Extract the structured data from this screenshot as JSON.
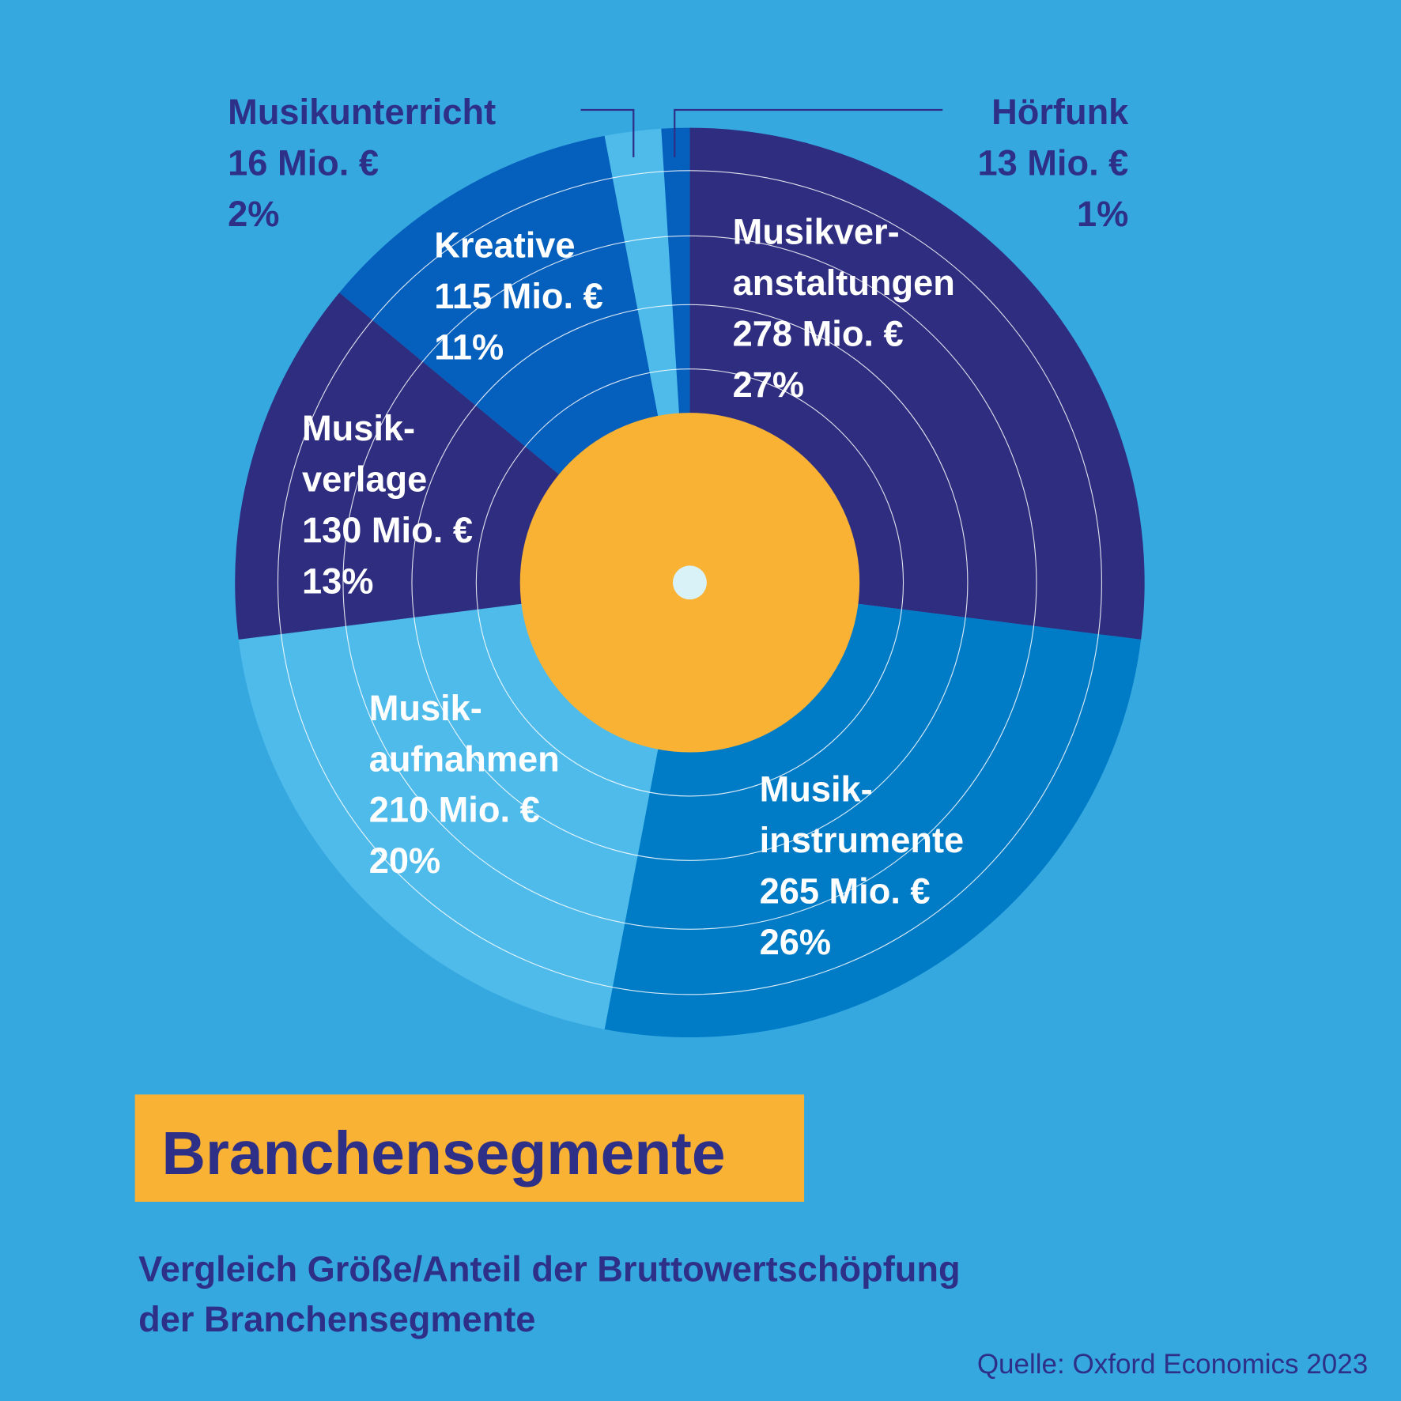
{
  "chart_data": {
    "type": "pie",
    "title": "Branchensegmente",
    "subtitle_lines": [
      "Vergleich Größe/Anteil der Bruttowertschöpfung",
      "der Branchensegmente"
    ],
    "source": "Quelle: Oxford Economics 2023",
    "start_angle": "top, clockwise",
    "slices": [
      {
        "name_lines": [
          "Musikver-",
          "anstaltungen"
        ],
        "value": 278,
        "value_label": "278 Mio. €",
        "percent": 27,
        "percent_label": "27%",
        "color": "#2e2d80"
      },
      {
        "name_lines": [
          "Musik-",
          "instrumente"
        ],
        "value": 265,
        "value_label": "265 Mio. €",
        "percent": 26,
        "percent_label": "26%",
        "color": "#007cc7"
      },
      {
        "name_lines": [
          "Musik-",
          "aufnahmen"
        ],
        "value": 210,
        "value_label": "210 Mio. €",
        "percent": 20,
        "percent_label": "20%",
        "color": "#4fbbeb"
      },
      {
        "name_lines": [
          "Musik-",
          "verlage"
        ],
        "value": 130,
        "value_label": "130 Mio. €",
        "percent": 13,
        "percent_label": "13%",
        "color": "#2e2d80"
      },
      {
        "name_lines": [
          "Kreative"
        ],
        "value": 115,
        "value_label": "115 Mio. €",
        "percent": 11,
        "percent_label": "11%",
        "color": "#055fbc"
      },
      {
        "name_lines": [
          "Musikunterricht"
        ],
        "value": 16,
        "value_label": "16 Mio. €",
        "percent": 2,
        "percent_label": "2%",
        "color": "#4fbbeb"
      },
      {
        "name_lines": [
          "Hörfunk"
        ],
        "value": 13,
        "value_label": "13 Mio. €",
        "percent": 1,
        "percent_label": "1%",
        "color": "#055fbc"
      }
    ],
    "colors": {
      "background": "#36a8e0",
      "center_label": "#f9b233",
      "spindle": "#d9f2f8",
      "text_dark": "#2e3087",
      "title_box": "#f9b233"
    }
  }
}
